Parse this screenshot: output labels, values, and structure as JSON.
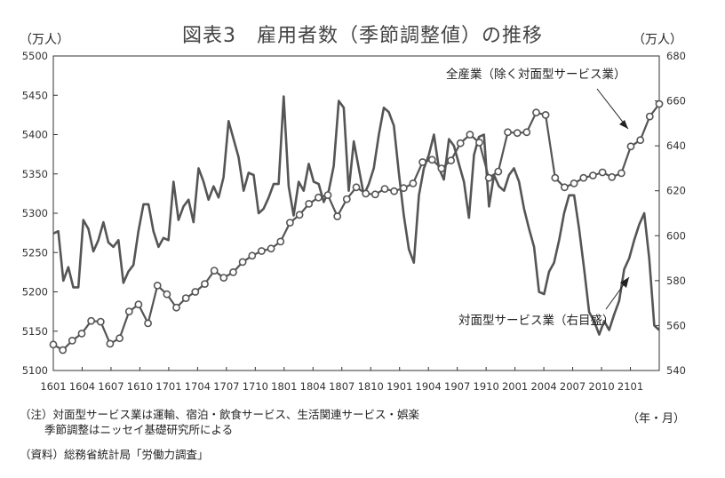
{
  "title": "図表3　雇用者数（季節調整値）の推移",
  "unit_left": "（万人）",
  "unit_right": "（万人）",
  "x_unit": "（年・月）",
  "notes": {
    "line1": "（注）対面型サービス業は運輸、宿泊・飲食サービス、生活関連サービス・娯楽",
    "line2": "季節調整はニッセイ基礎研究所による",
    "source": "（資料）総務省統計局「労働力調査」"
  },
  "colors": {
    "line": "#555555",
    "marker_fill": "#ffffff",
    "axis": "#333333"
  },
  "chart_data": {
    "type": "line",
    "title": "図表3　雇用者数（季節調整値）の推移",
    "x_tick_labels": [
      "1601",
      "1604",
      "1607",
      "1610",
      "1701",
      "1704",
      "1707",
      "1710",
      "1801",
      "1804",
      "1807",
      "1810",
      "1901",
      "1904",
      "1907",
      "1910",
      "2001",
      "2004",
      "2007",
      "2010",
      "2101"
    ],
    "x_start": "1601",
    "x_end": "2104",
    "y_left": {
      "min": 5100,
      "max": 5500,
      "step": 50,
      "label": "（万人）"
    },
    "y_right": {
      "min": 540,
      "max": 680,
      "step": 20,
      "label": "（万人）"
    },
    "series": [
      {
        "name": "全産業（除く対面型サービス業）",
        "axis": "left",
        "marker": "circle",
        "values": [
          5133,
          5126,
          5138,
          5147,
          5163,
          5162,
          5134,
          5141,
          5175,
          5184,
          5160,
          5208,
          5197,
          5180,
          5192,
          5200,
          5210,
          5227,
          5218,
          5225,
          5238,
          5246,
          5252,
          5255,
          5264,
          5288,
          5298,
          5312,
          5320,
          5323,
          5296,
          5318,
          5333,
          5325,
          5324,
          5331,
          5328,
          5332,
          5338,
          5365,
          5368,
          5357,
          5367,
          5389,
          5400,
          5390,
          5345,
          5353,
          5403,
          5402,
          5403,
          5428,
          5425,
          5345,
          5333,
          5338,
          5345,
          5348,
          5352,
          5346,
          5351,
          5385,
          5393,
          5423,
          5439
        ]
      },
      {
        "name": "対面型サービス業（右目盛）",
        "axis": "right",
        "marker": "none",
        "values": [
          601,
          602,
          580,
          586,
          577,
          577,
          607,
          603,
          593,
          598,
          606,
          597,
          595,
          598,
          579,
          584,
          587,
          602,
          614,
          614,
          602,
          595,
          599,
          598,
          624,
          607,
          613,
          616,
          606,
          630,
          624,
          616,
          622,
          617,
          626,
          651,
          643,
          635,
          620,
          628,
          627,
          610,
          612,
          617,
          623,
          623,
          662,
          622,
          609,
          624,
          620,
          632,
          624,
          623,
          615,
          620,
          631,
          660,
          657,
          620,
          642,
          630,
          618,
          623,
          630,
          645,
          657,
          655,
          649,
          628,
          609,
          594,
          588,
          618,
          630,
          636,
          645,
          630,
          625,
          643,
          640,
          632,
          624,
          608,
          636,
          644,
          645,
          613,
          627,
          622,
          620,
          627,
          630,
          624,
          612,
          603,
          595,
          575,
          574,
          584,
          588,
          598,
          610,
          618,
          618,
          603,
          585,
          566,
          562,
          556,
          562,
          558,
          565,
          571,
          585,
          590,
          598,
          605,
          610,
          590,
          560,
          558
        ]
      }
    ],
    "annotations": [
      {
        "text": "全産業（除く対面型サービス業）",
        "series": "全産業（除く対面型サービス業）"
      },
      {
        "text": "対面型サービス業（右目盛）",
        "series": "対面型サービス業（右目盛）"
      }
    ],
    "grid": false,
    "legend": "none"
  }
}
